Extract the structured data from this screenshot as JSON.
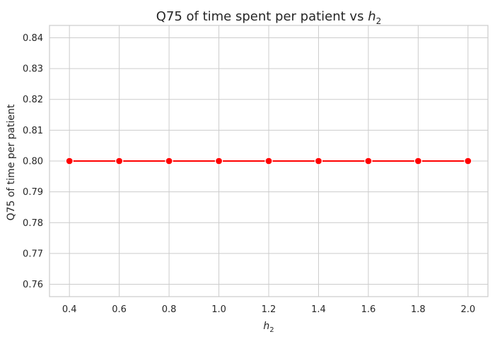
{
  "chart_data": {
    "type": "line",
    "title_prefix": "Q75 of time spent per patient vs ",
    "title_var": "h",
    "title_sub": "2",
    "xlabel_var": "h",
    "xlabel_sub": "2",
    "ylabel": "Q75 of time per patient",
    "x": [
      0.4,
      0.6,
      0.8,
      1.0,
      1.2,
      1.4,
      1.6,
      1.8,
      2.0
    ],
    "series": [
      {
        "values": [
          0.8,
          0.8,
          0.8,
          0.8,
          0.8,
          0.8,
          0.8,
          0.8,
          0.8
        ],
        "color": "#ff0000"
      }
    ],
    "x_ticks": [
      "0.4",
      "0.6",
      "0.8",
      "1.0",
      "1.2",
      "1.4",
      "1.6",
      "1.8",
      "2.0"
    ],
    "y_ticks": [
      "0.76",
      "0.77",
      "0.78",
      "0.79",
      "0.80",
      "0.81",
      "0.82",
      "0.83",
      "0.84"
    ],
    "xlim": [
      0.32,
      2.08
    ],
    "ylim": [
      0.756,
      0.844
    ],
    "grid": true
  }
}
